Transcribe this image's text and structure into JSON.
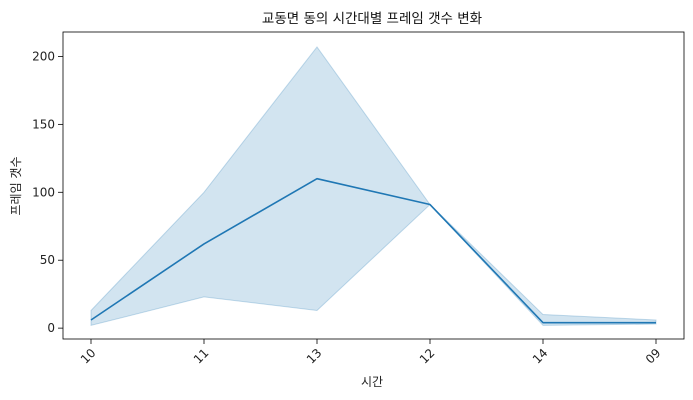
{
  "chart_data": {
    "type": "line",
    "title": "교동면 동의 시간대별 프레임 갯수 변화",
    "xlabel": "시간",
    "ylabel": "프레임 갯수",
    "categories": [
      "10",
      "11",
      "13",
      "12",
      "14",
      "09"
    ],
    "series": [
      {
        "values": [
          6,
          62,
          110,
          91,
          4,
          4
        ],
        "ci_lower": [
          2,
          23,
          13,
          91,
          2,
          3
        ],
        "ci_upper": [
          13,
          100,
          207,
          91,
          10,
          6
        ]
      }
    ],
    "yticks": [
      0,
      50,
      100,
      150,
      200
    ],
    "ylim": [
      -8,
      218
    ],
    "grid": false,
    "line_color": "#1f77b4",
    "band_color": "#1f77b4"
  }
}
